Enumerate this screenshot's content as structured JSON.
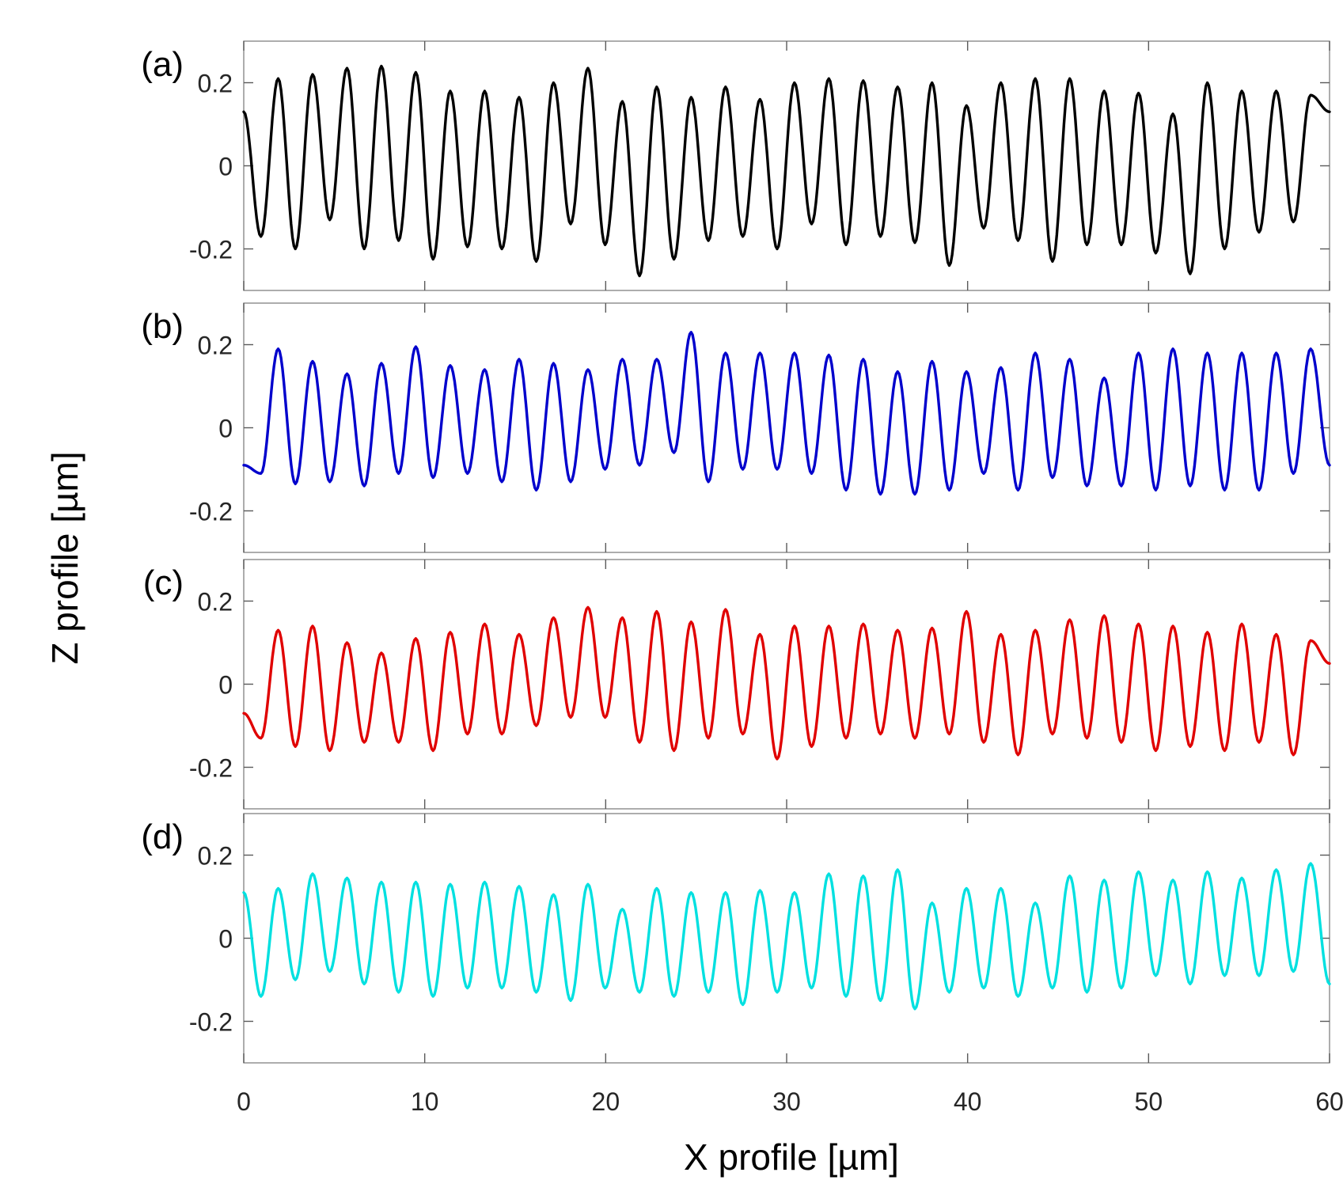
{
  "chart_data": {
    "type": "line",
    "xlabel": "X profile [µm]",
    "ylabel": "Z profile [µm]",
    "xlim": [
      0,
      60
    ],
    "ylim": [
      -0.3,
      0.3
    ],
    "x_ticks": [
      "0",
      "10",
      "20",
      "30",
      "40",
      "50",
      "60"
    ],
    "y_ticks": [
      "0.2",
      "0",
      "-0.2"
    ],
    "grid": false,
    "period_um": 1.9,
    "panels": [
      {
        "label": "(a)",
        "color": "#000000",
        "peaks": [
          0.13,
          0.21,
          0.22,
          0.235,
          0.24,
          0.225,
          0.18,
          0.18,
          0.165,
          0.2,
          0.235,
          0.155,
          0.19,
          0.165,
          0.19,
          0.16,
          0.2,
          0.21,
          0.205,
          0.19,
          0.2,
          0.145,
          0.2,
          0.21,
          0.21,
          0.18,
          0.175,
          0.125,
          0.2,
          0.18,
          0.18,
          0.17
        ],
        "troughs": [
          -0.17,
          -0.2,
          -0.13,
          -0.2,
          -0.18,
          -0.225,
          -0.195,
          -0.2,
          -0.23,
          -0.14,
          -0.19,
          -0.265,
          -0.225,
          -0.18,
          -0.17,
          -0.2,
          -0.14,
          -0.19,
          -0.17,
          -0.185,
          -0.24,
          -0.15,
          -0.18,
          -0.23,
          -0.19,
          -0.19,
          -0.21,
          -0.26,
          -0.2,
          -0.16,
          -0.135
        ],
        "end_value": 0.13
      },
      {
        "label": "(b)",
        "color": "#0000cc",
        "peaks": [
          -0.09,
          0.19,
          0.16,
          0.13,
          0.155,
          0.195,
          0.15,
          0.14,
          0.165,
          0.155,
          0.14,
          0.165,
          0.165,
          0.23,
          0.18,
          0.18,
          0.18,
          0.175,
          0.165,
          0.135,
          0.16,
          0.135,
          0.145,
          0.18,
          0.165,
          0.12,
          0.18,
          0.19,
          0.18,
          0.18,
          0.18,
          0.19
        ],
        "troughs": [
          -0.11,
          -0.135,
          -0.13,
          -0.14,
          -0.11,
          -0.12,
          -0.11,
          -0.13,
          -0.15,
          -0.13,
          -0.1,
          -0.09,
          -0.06,
          -0.13,
          -0.1,
          -0.1,
          -0.11,
          -0.15,
          -0.16,
          -0.16,
          -0.15,
          -0.11,
          -0.15,
          -0.12,
          -0.14,
          -0.14,
          -0.15,
          -0.14,
          -0.15,
          -0.15,
          -0.11
        ],
        "end_value": -0.09
      },
      {
        "label": "(c)",
        "color": "#e00000",
        "peaks": [
          -0.07,
          0.13,
          0.14,
          0.1,
          0.075,
          0.11,
          0.125,
          0.145,
          0.12,
          0.16,
          0.185,
          0.16,
          0.175,
          0.15,
          0.18,
          0.12,
          0.14,
          0.14,
          0.145,
          0.13,
          0.135,
          0.175,
          0.12,
          0.13,
          0.155,
          0.165,
          0.145,
          0.14,
          0.125,
          0.145,
          0.12,
          0.105
        ],
        "troughs": [
          -0.13,
          -0.15,
          -0.16,
          -0.14,
          -0.14,
          -0.16,
          -0.12,
          -0.12,
          -0.1,
          -0.08,
          -0.08,
          -0.14,
          -0.16,
          -0.13,
          -0.12,
          -0.18,
          -0.15,
          -0.13,
          -0.12,
          -0.13,
          -0.12,
          -0.14,
          -0.17,
          -0.12,
          -0.13,
          -0.14,
          -0.16,
          -0.15,
          -0.16,
          -0.14,
          -0.17
        ],
        "end_value": 0.05
      },
      {
        "label": "(d)",
        "color": "#00e0e0",
        "peaks": [
          0.11,
          0.12,
          0.155,
          0.145,
          0.135,
          0.135,
          0.13,
          0.135,
          0.125,
          0.105,
          0.13,
          0.07,
          0.12,
          0.11,
          0.11,
          0.115,
          0.11,
          0.155,
          0.15,
          0.165,
          0.085,
          0.12,
          0.12,
          0.085,
          0.15,
          0.14,
          0.16,
          0.14,
          0.16,
          0.145,
          0.165,
          0.18
        ],
        "troughs": [
          -0.14,
          -0.1,
          -0.08,
          -0.11,
          -0.13,
          -0.14,
          -0.12,
          -0.12,
          -0.13,
          -0.15,
          -0.12,
          -0.13,
          -0.14,
          -0.13,
          -0.16,
          -0.13,
          -0.12,
          -0.14,
          -0.15,
          -0.17,
          -0.13,
          -0.12,
          -0.14,
          -0.12,
          -0.13,
          -0.12,
          -0.09,
          -0.11,
          -0.09,
          -0.09,
          -0.08
        ],
        "end_value": -0.11
      }
    ]
  }
}
